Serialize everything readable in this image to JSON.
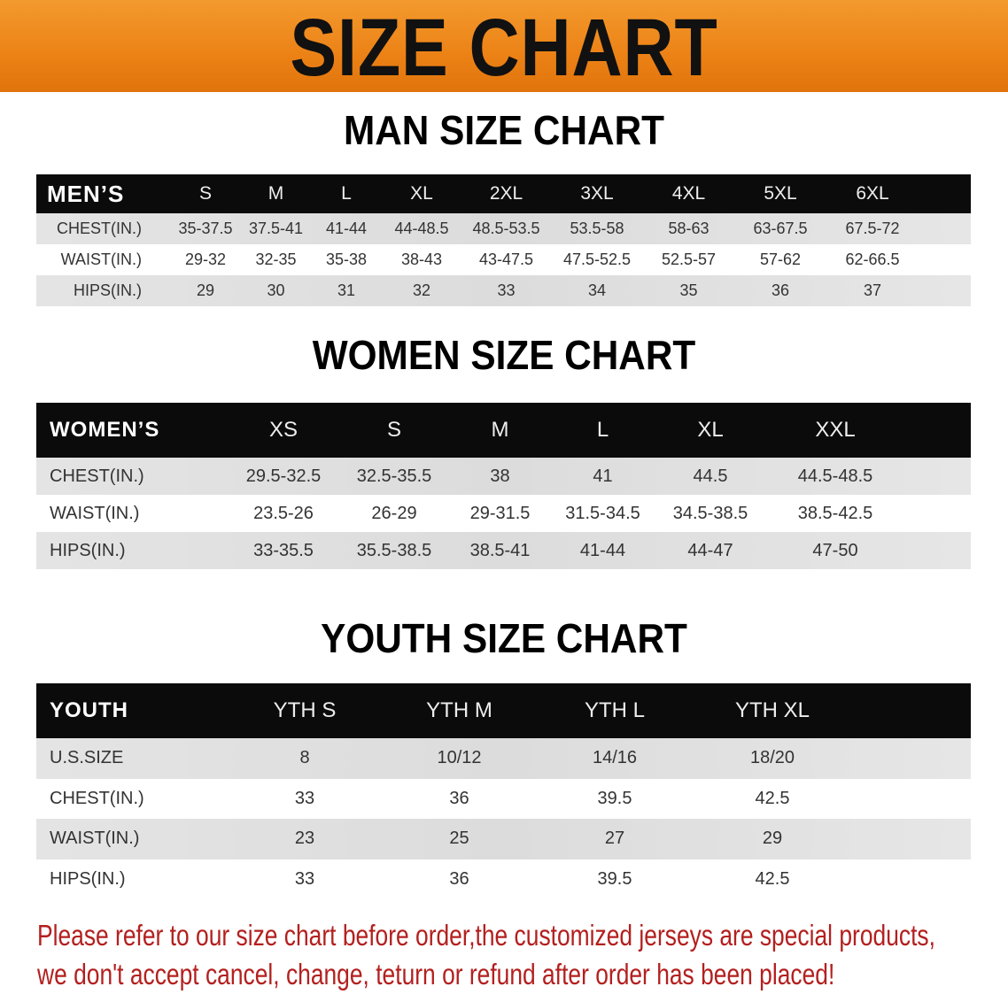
{
  "banner_title": "SIZE CHART",
  "men": {
    "title": "MAN SIZE CHART",
    "header_label": "MEN’S",
    "sizes": [
      "S",
      "M",
      "L",
      "XL",
      "2XL",
      "3XL",
      "4XL",
      "5XL",
      "6XL"
    ],
    "rows": [
      {
        "label": "CHEST(IN.)",
        "values": [
          "35-37.5",
          "37.5-41",
          "41-44",
          "44-48.5",
          "48.5-53.5",
          "53.5-58",
          "58-63",
          "63-67.5",
          "67.5-72"
        ]
      },
      {
        "label": "WAIST(IN.)",
        "values": [
          "29-32",
          "32-35",
          "35-38",
          "38-43",
          "43-47.5",
          "47.5-52.5",
          "52.5-57",
          "57-62",
          "62-66.5"
        ]
      },
      {
        "label": "HIPS(IN.)",
        "values": [
          "29",
          "30",
          "31",
          "32",
          "33",
          "34",
          "35",
          "36",
          "37"
        ]
      }
    ]
  },
  "women": {
    "title": "WOMEN SIZE CHART",
    "header_label": "WOMEN’S",
    "sizes": [
      "XS",
      "S",
      "M",
      "L",
      "XL",
      "XXL"
    ],
    "rows": [
      {
        "label": "CHEST(IN.)",
        "values": [
          "29.5-32.5",
          "32.5-35.5",
          "38",
          "41",
          "44.5",
          "44.5-48.5"
        ]
      },
      {
        "label": "WAIST(IN.)",
        "values": [
          "23.5-26",
          "26-29",
          "29-31.5",
          "31.5-34.5",
          "34.5-38.5",
          "38.5-42.5"
        ]
      },
      {
        "label": "HIPS(IN.)",
        "values": [
          "33-35.5",
          "35.5-38.5",
          "38.5-41",
          "41-44",
          "44-47",
          "47-50"
        ]
      }
    ]
  },
  "youth": {
    "title": "YOUTH SIZE CHART",
    "header_label": "YOUTH",
    "sizes": [
      "YTH S",
      "YTH M",
      "YTH L",
      "YTH XL"
    ],
    "rows": [
      {
        "label": "U.S.SIZE",
        "values": [
          "8",
          "10/12",
          "14/16",
          "18/20"
        ]
      },
      {
        "label": "CHEST(IN.)",
        "values": [
          "33",
          "36",
          "39.5",
          "42.5"
        ]
      },
      {
        "label": "WAIST(IN.)",
        "values": [
          "23",
          "25",
          "27",
          "29"
        ]
      },
      {
        "label": "HIPS(IN.)",
        "values": [
          "33",
          "36",
          "39.5",
          "42.5"
        ]
      }
    ]
  },
  "notice": [
    "Please refer to our size chart before order,the customized jerseys are special products,",
    "we don't accept cancel, change, teturn or refund after order has been placed!"
  ],
  "colors": {
    "banner": "#ec8216",
    "header_row": "#0b0b0b",
    "notice": "#b3201f"
  }
}
